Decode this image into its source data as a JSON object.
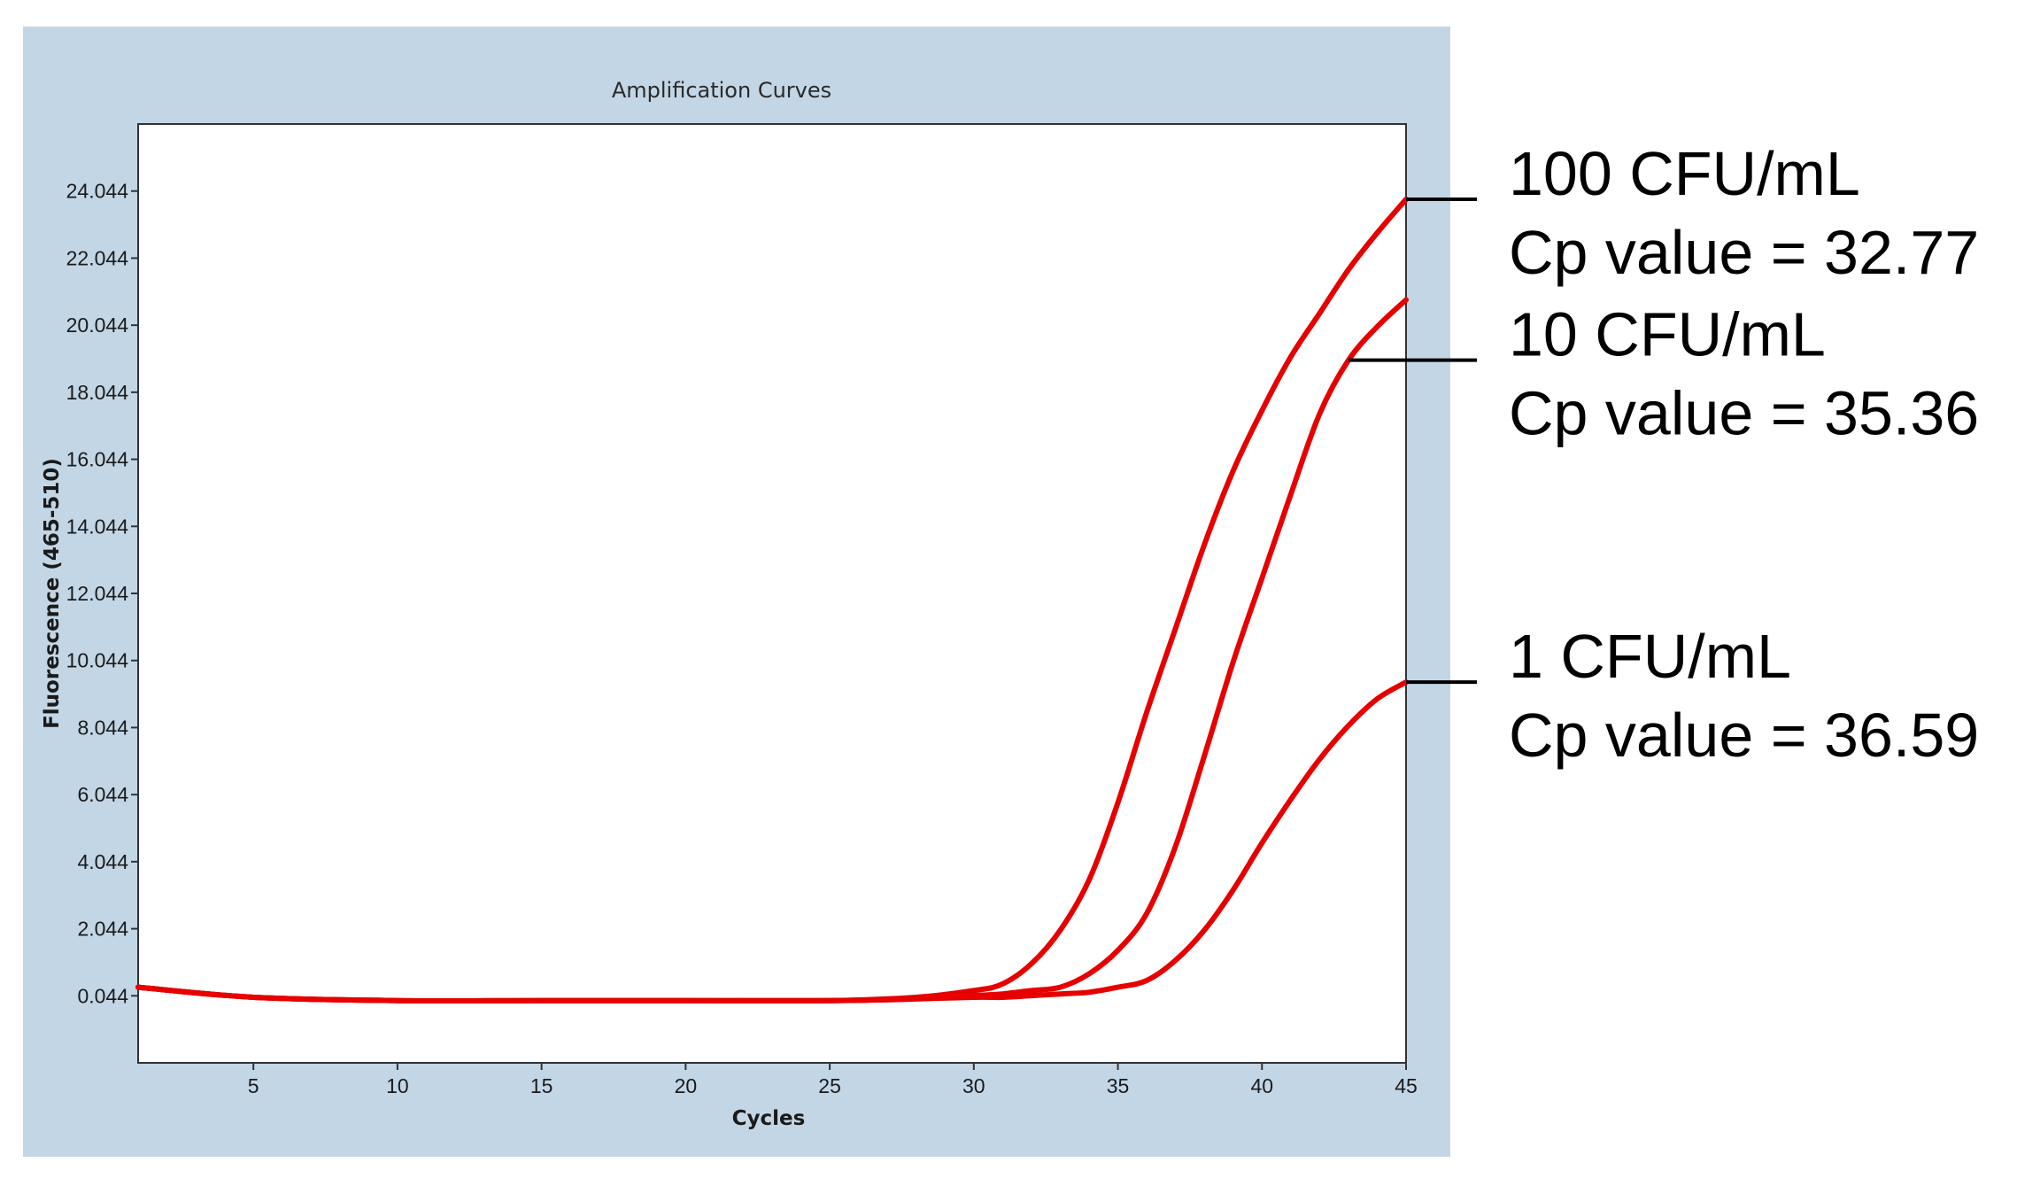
{
  "chart_data": {
    "type": "line",
    "title": "Amplification Curves",
    "xlabel": "Cycles",
    "ylabel": "Fluorescence (465-510)",
    "xlim": [
      1,
      45
    ],
    "ylim": [
      -1.956,
      26.044
    ],
    "x_ticks": [
      5,
      10,
      15,
      20,
      25,
      30,
      35,
      40,
      45
    ],
    "y_ticks": [
      0.044,
      2.044,
      4.044,
      6.044,
      8.044,
      10.044,
      12.044,
      14.044,
      16.044,
      18.044,
      20.044,
      22.044,
      24.044
    ],
    "grid": false,
    "line_color": "#e60000",
    "background_color": "#c3d6e6",
    "series": [
      {
        "x": [
          1,
          5,
          10,
          15,
          20,
          25,
          28,
          30,
          31,
          32,
          33,
          34,
          35,
          36,
          37,
          38,
          39,
          40,
          41,
          42,
          43,
          44,
          45
        ],
        "y": [
          0.3,
          0.0,
          -0.1,
          -0.1,
          -0.1,
          -0.1,
          0.0,
          0.2,
          0.4,
          1.0,
          2.0,
          3.5,
          5.8,
          8.5,
          11.0,
          13.5,
          15.7,
          17.5,
          19.1,
          20.4,
          21.7,
          22.8,
          23.8
        ]
      },
      {
        "x": [
          1,
          5,
          10,
          15,
          20,
          25,
          28,
          30,
          31,
          32,
          33,
          34,
          35,
          36,
          37,
          38,
          39,
          40,
          41,
          42,
          43,
          44,
          45
        ],
        "y": [
          0.3,
          0.0,
          -0.1,
          -0.1,
          -0.1,
          -0.1,
          -0.05,
          0.05,
          0.1,
          0.2,
          0.3,
          0.7,
          1.4,
          2.5,
          4.5,
          7.2,
          10.0,
          12.5,
          15.0,
          17.4,
          19.0,
          20.0,
          20.8
        ]
      },
      {
        "x": [
          1,
          5,
          10,
          15,
          20,
          25,
          28,
          30,
          31,
          32,
          33,
          34,
          35,
          36,
          37,
          38,
          39,
          40,
          41,
          42,
          43,
          44,
          45
        ],
        "y": [
          0.3,
          0.0,
          -0.1,
          -0.1,
          -0.1,
          -0.1,
          -0.05,
          0.0,
          0.0,
          0.05,
          0.1,
          0.15,
          0.3,
          0.5,
          1.1,
          2.0,
          3.2,
          4.6,
          5.9,
          7.1,
          8.1,
          8.9,
          9.4
        ]
      }
    ],
    "annotations": [
      {
        "line1": "100 CFU/mL",
        "line2": "Cp value = 32.77",
        "series_index": 0,
        "target_x": 45
      },
      {
        "line1": "10 CFU/mL",
        "line2": "Cp value = 35.36",
        "series_index": 1,
        "target_x": 43
      },
      {
        "line1": "1 CFU/mL",
        "line2": "Cp value = 36.59",
        "series_index": 2,
        "target_x": 45
      }
    ]
  }
}
